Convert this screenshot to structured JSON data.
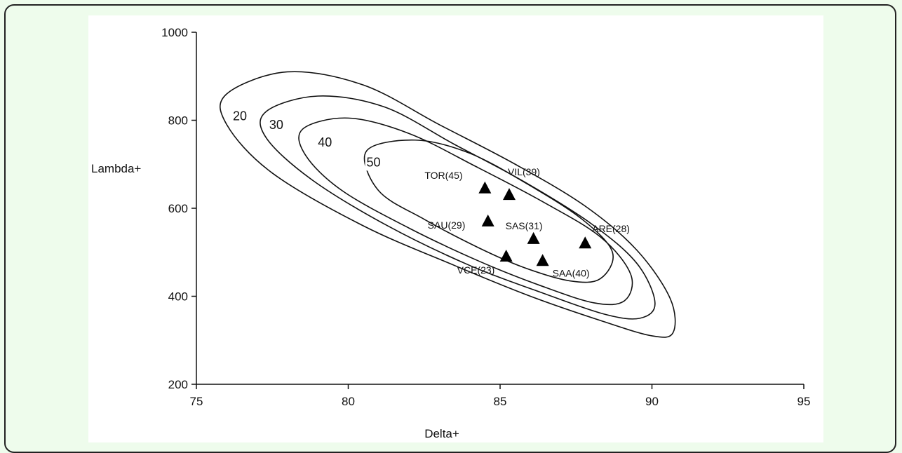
{
  "chart_data": {
    "type": "scatter",
    "xlabel": "Delta+",
    "ylabel": "Lambda+",
    "xlim": [
      75,
      95
    ],
    "ylim": [
      200,
      1000
    ],
    "xticks": [
      "75",
      "80",
      "85",
      "90",
      "95"
    ],
    "yticks": [
      "200",
      "400",
      "600",
      "800",
      "1000"
    ],
    "grid": false,
    "contour_levels": [
      "20",
      "30",
      "40",
      "50"
    ],
    "contours": [
      {
        "level": "20",
        "points": [
          [
            76.0,
            860
          ],
          [
            78.0,
            910
          ],
          [
            80.5,
            880
          ],
          [
            83.0,
            790
          ],
          [
            85.5,
            700
          ],
          [
            87.8,
            605
          ],
          [
            89.5,
            505
          ],
          [
            90.6,
            395
          ],
          [
            90.7,
            318
          ],
          [
            90.0,
            310
          ],
          [
            88.3,
            345
          ],
          [
            86.0,
            400
          ],
          [
            83.5,
            470
          ],
          [
            80.5,
            560
          ],
          [
            77.5,
            680
          ],
          [
            76.0,
            790
          ]
        ]
      },
      {
        "level": "30",
        "points": [
          [
            77.3,
            820
          ],
          [
            79.0,
            855
          ],
          [
            81.2,
            830
          ],
          [
            83.5,
            745
          ],
          [
            85.8,
            660
          ],
          [
            88.0,
            565
          ],
          [
            89.5,
            475
          ],
          [
            90.1,
            385
          ],
          [
            89.6,
            350
          ],
          [
            88.4,
            360
          ],
          [
            86.3,
            410
          ],
          [
            84.0,
            470
          ],
          [
            81.3,
            560
          ],
          [
            78.8,
            665
          ],
          [
            77.3,
            760
          ]
        ]
      },
      {
        "level": "40",
        "points": [
          [
            78.5,
            780
          ],
          [
            80.0,
            805
          ],
          [
            82.0,
            770
          ],
          [
            84.2,
            695
          ],
          [
            86.4,
            615
          ],
          [
            88.3,
            535
          ],
          [
            89.3,
            450
          ],
          [
            89.1,
            390
          ],
          [
            88.1,
            385
          ],
          [
            86.3,
            425
          ],
          [
            84.3,
            480
          ],
          [
            82.0,
            555
          ],
          [
            79.8,
            640
          ],
          [
            78.6,
            720
          ]
        ]
      },
      {
        "level": "50",
        "points": [
          [
            80.6,
            730
          ],
          [
            82.2,
            755
          ],
          [
            84.0,
            725
          ],
          [
            85.9,
            655
          ],
          [
            87.7,
            575
          ],
          [
            88.7,
            500
          ],
          [
            88.3,
            440
          ],
          [
            87.3,
            435
          ],
          [
            85.8,
            465
          ],
          [
            84.3,
            510
          ],
          [
            82.5,
            575
          ],
          [
            81.0,
            640
          ]
        ]
      }
    ],
    "contour_label_positions": [
      [
        76.2,
        800
      ],
      [
        77.4,
        780
      ],
      [
        79.0,
        740
      ],
      [
        80.6,
        695
      ]
    ],
    "points": [
      {
        "label": "TOR(45)",
        "x": 84.5,
        "y": 645
      },
      {
        "label": "VIL(39)",
        "x": 85.3,
        "y": 630
      },
      {
        "label": "SAU(29)",
        "x": 84.6,
        "y": 570
      },
      {
        "label": "SAS(31)",
        "x": 86.1,
        "y": 530
      },
      {
        "label": "ARE(28)",
        "x": 87.8,
        "y": 520
      },
      {
        "label": "VCE(23)",
        "x": 85.2,
        "y": 490
      },
      {
        "label": "SAA(40)",
        "x": 86.4,
        "y": 480
      }
    ]
  }
}
